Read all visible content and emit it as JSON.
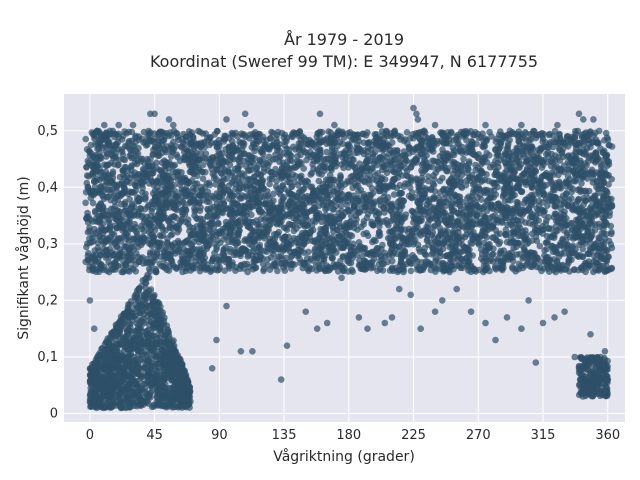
{
  "chart_data": {
    "type": "scatter",
    "title_line1": "År 1979 - 2019",
    "title_line2": "Koordinat (Sweref 99 TM): E 349947, N 6177755",
    "xlabel": "Vågriktning (grader)",
    "ylabel": "Signifikant våghöjd (m)",
    "xlim": [
      -18,
      372
    ],
    "ylim": [
      -0.015,
      0.565
    ],
    "x_ticks": [
      0,
      45,
      90,
      135,
      180,
      225,
      270,
      315,
      360
    ],
    "x_tick_labels": [
      "0",
      "45",
      "90",
      "135",
      "180",
      "225",
      "270",
      "315",
      "360"
    ],
    "y_ticks": [
      0,
      0.1,
      0.2,
      0.3,
      0.4,
      0.5
    ],
    "y_tick_labels": [
      "0",
      "0,1",
      "0,2",
      "0,3",
      "0,4",
      "0,5"
    ],
    "grid": true,
    "marker_color": "#2e5068",
    "plot_background": "#e5e5ef",
    "series": [
      {
        "regions": [
          {
            "x_range": [
              -3,
              363
            ],
            "y_range": [
              0.25,
              0.5
            ],
            "description": "dense band"
          },
          {
            "x_range": [
              0,
              70
            ],
            "y_range": [
              0.01,
              0.25
            ],
            "description": "low-direction cluster"
          },
          {
            "x_range": [
              340,
              360
            ],
            "y_range": [
              0.03,
              0.1
            ],
            "description": "high-direction cluster"
          }
        ],
        "notable_points": [
          [
            5,
            0.5
          ],
          [
            10,
            0.51
          ],
          [
            20,
            0.51
          ],
          [
            30,
            0.51
          ],
          [
            42,
            0.53
          ],
          [
            45,
            0.53
          ],
          [
            55,
            0.52
          ],
          [
            58,
            0.51
          ],
          [
            95,
            0.52
          ],
          [
            108,
            0.53
          ],
          [
            112,
            0.51
          ],
          [
            160,
            0.53
          ],
          [
            170,
            0.51
          ],
          [
            202,
            0.51
          ],
          [
            212,
            0.5
          ],
          [
            225,
            0.54
          ],
          [
            227,
            0.53
          ],
          [
            228,
            0.52
          ],
          [
            240,
            0.51
          ],
          [
            275,
            0.51
          ],
          [
            300,
            0.51
          ],
          [
            325,
            0.51
          ],
          [
            340,
            0.53
          ],
          [
            343,
            0.52
          ],
          [
            350,
            0.52
          ],
          [
            0,
            0.2
          ],
          [
            3,
            0.15
          ],
          [
            8,
            0.05
          ],
          [
            85,
            0.08
          ],
          [
            88,
            0.13
          ],
          [
            95,
            0.19
          ],
          [
            105,
            0.11
          ],
          [
            113,
            0.11
          ],
          [
            133,
            0.06
          ],
          [
            137,
            0.12
          ],
          [
            150,
            0.18
          ],
          [
            158,
            0.15
          ],
          [
            165,
            0.16
          ],
          [
            175,
            0.24
          ],
          [
            187,
            0.17
          ],
          [
            193,
            0.15
          ],
          [
            205,
            0.16
          ],
          [
            210,
            0.17
          ],
          [
            215,
            0.22
          ],
          [
            223,
            0.21
          ],
          [
            230,
            0.15
          ],
          [
            240,
            0.18
          ],
          [
            245,
            0.2
          ],
          [
            255,
            0.22
          ],
          [
            265,
            0.18
          ],
          [
            275,
            0.16
          ],
          [
            282,
            0.13
          ],
          [
            290,
            0.17
          ],
          [
            300,
            0.15
          ],
          [
            305,
            0.2
          ],
          [
            310,
            0.09
          ],
          [
            315,
            0.16
          ],
          [
            323,
            0.17
          ],
          [
            330,
            0.18
          ],
          [
            337,
            0.1
          ],
          [
            343,
            0.08
          ],
          [
            348,
            0.14
          ],
          [
            355,
            0.1
          ],
          [
            358,
            0.11
          ],
          [
            360,
            0.06
          ]
        ]
      }
    ]
  }
}
